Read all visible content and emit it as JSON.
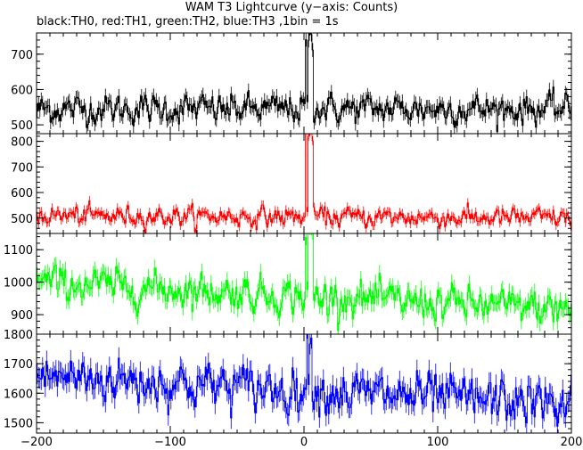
{
  "title": "WAM T3 Lightcurve (y−axis: Counts)",
  "subtitle": "black:TH0, red:TH1, green:TH2, blue:TH3 ,1bin = 1s",
  "chart_data": [
    {
      "type": "line",
      "series": [
        {
          "name": "TH0",
          "color": "#000000",
          "baseline_start": 545,
          "baseline_end": 545,
          "noise_sd": 22,
          "peak": 760,
          "peak_x": [
            1,
            6
          ]
        }
      ],
      "x_range": [
        -200,
        200
      ],
      "ylim": [
        475,
        760
      ],
      "yticks": [
        500,
        600,
        700
      ]
    },
    {
      "type": "line",
      "series": [
        {
          "name": "TH1",
          "color": "#ff0000",
          "baseline_start": 510,
          "baseline_end": 500,
          "noise_sd": 20,
          "peak": 850,
          "peak_x": [
            1,
            6
          ]
        }
      ],
      "x_range": [
        -200,
        200
      ],
      "ylim": [
        440,
        830
      ],
      "yticks": [
        500,
        600,
        700,
        800
      ]
    },
    {
      "type": "line",
      "series": [
        {
          "name": "TH2",
          "color": "#00ff00",
          "baseline_start": 1000,
          "baseline_end": 915,
          "noise_sd": 28,
          "peak": 1170,
          "peak_x": [
            1,
            6
          ]
        }
      ],
      "x_range": [
        -200,
        200
      ],
      "ylim": [
        840,
        1150
      ],
      "yticks": [
        900,
        1000,
        1100
      ]
    },
    {
      "type": "line",
      "series": [
        {
          "name": "TH3",
          "color": "#0000ff",
          "baseline_start": 1660,
          "baseline_end": 1560,
          "noise_sd": 40,
          "peak": 1800,
          "peak_x": [
            2,
            5
          ]
        }
      ],
      "x_range": [
        -200,
        200
      ],
      "ylim": [
        1465,
        1800
      ],
      "yticks": [
        1500,
        1600,
        1700,
        1800
      ]
    }
  ],
  "x_axis": {
    "min": -200,
    "max": 200,
    "ticks": [
      -200,
      -100,
      0,
      100,
      200
    ],
    "minor_step": 10
  }
}
